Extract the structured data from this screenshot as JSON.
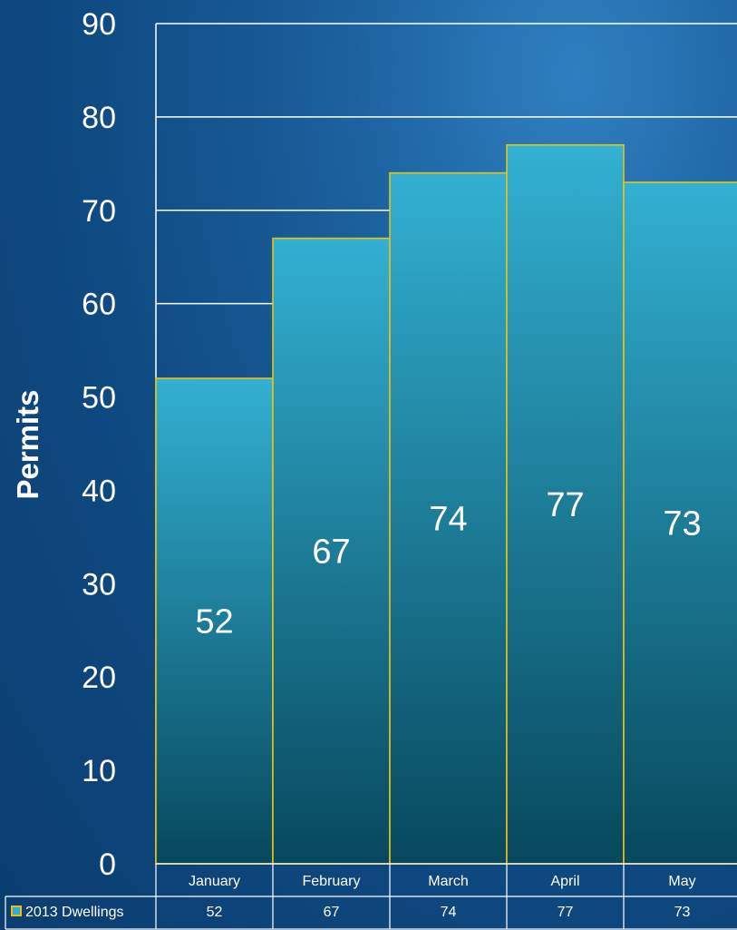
{
  "chart_data": {
    "type": "bar",
    "categories": [
      "January",
      "February",
      "March",
      "April",
      "May"
    ],
    "series": [
      {
        "name": "2013 Dwellings",
        "values": [
          52,
          67,
          74,
          77,
          73
        ]
      }
    ],
    "ylabel": "Permits",
    "ylim": [
      0,
      90
    ],
    "yticks": [
      0,
      10,
      20,
      30,
      40,
      50,
      60,
      70,
      80,
      90
    ],
    "grid": true,
    "legend": "data-table-left",
    "colors": {
      "bar_top": "#33b0d2",
      "bar_bottom": "#07485d",
      "bar_border": "#e8c213",
      "grid": "#ffffff",
      "legend_key_fill": "#3aa8d8",
      "legend_key_border": "#e8c213"
    }
  }
}
